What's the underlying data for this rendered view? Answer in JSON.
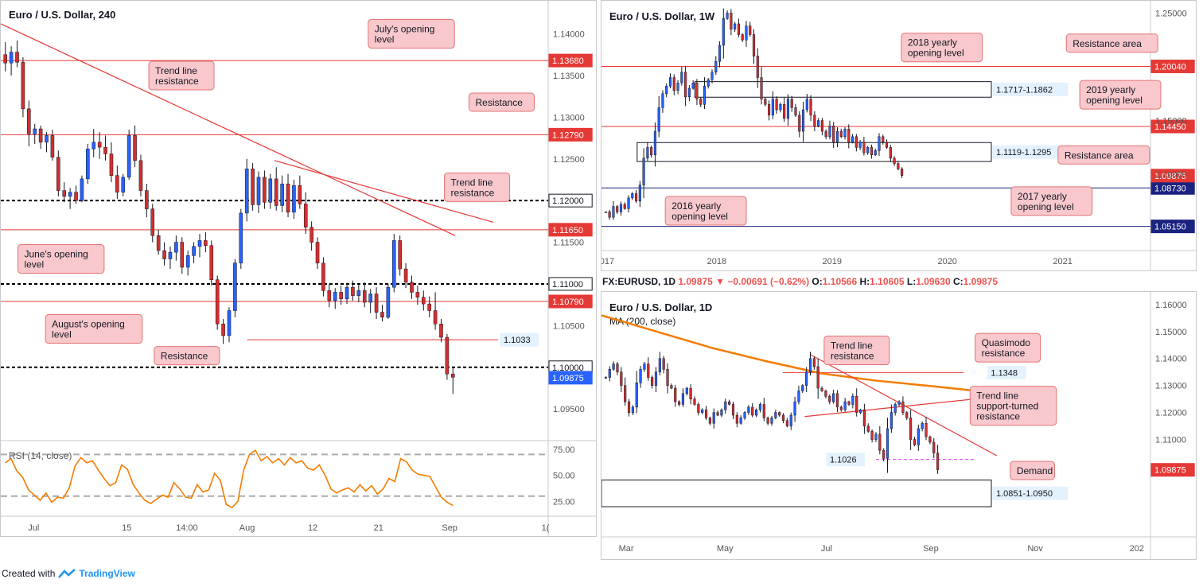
{
  "footer": {
    "created_with": "Created with",
    "brand": "TradingView"
  },
  "chart_data": [
    {
      "id": "h4",
      "type": "candlestick",
      "title": "Euro / U.S. Dollar, 240",
      "ylim": [
        1.0912,
        1.1432
      ],
      "y_ticks": [
        "1.14000",
        "1.13500",
        "1.13000",
        "1.12500",
        "1.11500",
        "1.10500",
        "1.09500"
      ],
      "x_ticks": [
        {
          "label": "Jul",
          "pos": 0.06
        },
        {
          "label": "15",
          "pos": 0.23
        },
        {
          "label": "14:00",
          "pos": 0.34
        },
        {
          "label": "Aug",
          "pos": 0.45
        },
        {
          "label": "12",
          "pos": 0.57
        },
        {
          "label": "21",
          "pos": 0.69
        },
        {
          "label": "Sep",
          "pos": 0.82
        },
        {
          "label": "1(",
          "pos": 0.995
        }
      ],
      "last_price": 1.09875,
      "last_price_label": "1.09875",
      "levels": [
        {
          "value": 1.1368,
          "label": "1.13680",
          "style": "solid",
          "color": "#e53935"
        },
        {
          "value": 1.1279,
          "label": "1.12790",
          "style": "solid",
          "color": "#e53935"
        },
        {
          "value": 1.12,
          "label": "1.12000",
          "style": "dashed",
          "color": "#000000"
        },
        {
          "value": 1.1165,
          "label": "1.11650",
          "style": "solid",
          "color": "#e53935"
        },
        {
          "value": 1.11,
          "label": "1.11000",
          "style": "dashed",
          "color": "#000000"
        },
        {
          "value": 1.1079,
          "label": "1.10790",
          "style": "solid",
          "color": "#e53935"
        },
        {
          "value": 1.1,
          "label": "1.10000",
          "style": "dashed",
          "color": "#000000"
        }
      ],
      "resistance_line": {
        "value": 1.1033,
        "label": "1.1033",
        "start": 0.45
      },
      "trendlines": [
        {
          "x1": 0.0,
          "y1": 1.1412,
          "x2": 0.83,
          "y2": 1.1158
        },
        {
          "x1": 0.5,
          "y1": 1.1248,
          "x2": 0.9,
          "y2": 1.1174
        }
      ],
      "annotations": [
        {
          "text": "July's opening level",
          "x": 0.75,
          "y": 1.14
        },
        {
          "text": "Trend line resistance",
          "x": 0.33,
          "y": 1.135
        },
        {
          "text": "Resistance",
          "x": 0.915,
          "y": 1.1318
        },
        {
          "text": "Trend line resistance",
          "x": 0.87,
          "y": 1.1216
        },
        {
          "text": "June's opening level",
          "x": 0.11,
          "y": 1.113
        },
        {
          "text": "August's opening level",
          "x": 0.17,
          "y": 1.1046
        },
        {
          "text": "Resistance",
          "x": 0.34,
          "y": 1.1014
        }
      ],
      "rsi": {
        "label": "RSI (14, close)",
        "levels": [
          70,
          30
        ],
        "y_ticks": [
          "75.00",
          "50.00",
          "25.00"
        ],
        "ylim": [
          13,
          81
        ],
        "values": [
          62,
          66,
          54,
          48,
          36,
          31,
          26,
          33,
          24,
          29,
          28,
          38,
          59,
          67,
          62,
          64,
          55,
          47,
          40,
          43,
          60,
          56,
          41,
          33,
          26,
          23,
          27,
          31,
          29,
          43,
          37,
          29,
          28,
          41,
          34,
          36,
          52,
          45,
          22,
          19,
          25,
          55,
          70,
          74,
          64,
          68,
          62,
          66,
          60,
          67,
          62,
          64,
          57,
          55,
          60,
          50,
          37,
          33,
          36,
          38,
          34,
          41,
          35,
          40,
          32,
          37,
          47,
          44,
          66,
          63,
          55,
          51,
          50,
          49,
          39,
          29,
          24,
          21
        ]
      },
      "candles": [
        [
          1.1375,
          1.139,
          1.1355,
          1.1365
        ],
        [
          1.1365,
          1.1385,
          1.135,
          1.1378
        ],
        [
          1.1378,
          1.1392,
          1.136,
          1.1366
        ],
        [
          1.1366,
          1.1372,
          1.13,
          1.131
        ],
        [
          1.131,
          1.132,
          1.1265,
          1.128
        ],
        [
          1.128,
          1.1292,
          1.1268,
          1.1286
        ],
        [
          1.1286,
          1.129,
          1.1262,
          1.127
        ],
        [
          1.127,
          1.1282,
          1.1258,
          1.1278
        ],
        [
          1.1278,
          1.1285,
          1.1248,
          1.1252
        ],
        [
          1.1252,
          1.126,
          1.1205,
          1.1212
        ],
        [
          1.1212,
          1.1222,
          1.1198,
          1.1205
        ],
        [
          1.1205,
          1.1215,
          1.119,
          1.121
        ],
        [
          1.121,
          1.1218,
          1.1196,
          1.12
        ],
        [
          1.12,
          1.123,
          1.1198,
          1.1226
        ],
        [
          1.1226,
          1.1268,
          1.122,
          1.1262
        ],
        [
          1.1262,
          1.1286,
          1.1252,
          1.127
        ],
        [
          1.127,
          1.1282,
          1.125,
          1.1264
        ],
        [
          1.1264,
          1.1278,
          1.1248,
          1.1256
        ],
        [
          1.1256,
          1.127,
          1.1222,
          1.123
        ],
        [
          1.123,
          1.1242,
          1.1202,
          1.121
        ],
        [
          1.121,
          1.1232,
          1.1205,
          1.1228
        ],
        [
          1.1228,
          1.1285,
          1.1225,
          1.1278
        ],
        [
          1.1278,
          1.129,
          1.124,
          1.1248
        ],
        [
          1.1248,
          1.1255,
          1.1205,
          1.1212
        ],
        [
          1.1212,
          1.122,
          1.118,
          1.119
        ],
        [
          1.119,
          1.1196,
          1.115,
          1.1158
        ],
        [
          1.1158,
          1.1165,
          1.1135,
          1.114
        ],
        [
          1.114,
          1.115,
          1.1122,
          1.113
        ],
        [
          1.113,
          1.1145,
          1.1118,
          1.1138
        ],
        [
          1.1138,
          1.1158,
          1.1128,
          1.115
        ],
        [
          1.115,
          1.1156,
          1.1112,
          1.112
        ],
        [
          1.112,
          1.114,
          1.111,
          1.1134
        ],
        [
          1.1134,
          1.115,
          1.1125,
          1.1145
        ],
        [
          1.1145,
          1.116,
          1.1132,
          1.1152
        ],
        [
          1.1152,
          1.1162,
          1.1138,
          1.1146
        ],
        [
          1.1146,
          1.1152,
          1.1098,
          1.1105
        ],
        [
          1.1105,
          1.111,
          1.1045,
          1.1052
        ],
        [
          1.1052,
          1.1058,
          1.1028,
          1.1038
        ],
        [
          1.1038,
          1.1072,
          1.103,
          1.1068
        ],
        [
          1.1068,
          1.113,
          1.106,
          1.1125
        ],
        [
          1.1125,
          1.119,
          1.1118,
          1.1185
        ],
        [
          1.1185,
          1.125,
          1.1175,
          1.1238
        ],
        [
          1.1238,
          1.1245,
          1.1188,
          1.1195
        ],
        [
          1.1195,
          1.1235,
          1.1185,
          1.1228
        ],
        [
          1.1228,
          1.1236,
          1.119,
          1.1198
        ],
        [
          1.1198,
          1.1232,
          1.119,
          1.1226
        ],
        [
          1.1226,
          1.124,
          1.1188,
          1.1194
        ],
        [
          1.1194,
          1.123,
          1.1186,
          1.122
        ],
        [
          1.122,
          1.1232,
          1.118,
          1.1186
        ],
        [
          1.1186,
          1.1225,
          1.1178,
          1.1218
        ],
        [
          1.1218,
          1.123,
          1.119,
          1.1196
        ],
        [
          1.1196,
          1.121,
          1.116,
          1.1168
        ],
        [
          1.1168,
          1.1175,
          1.114,
          1.115
        ],
        [
          1.115,
          1.1156,
          1.1118,
          1.1125
        ],
        [
          1.1125,
          1.1132,
          1.1085,
          1.1092
        ],
        [
          1.1092,
          1.11,
          1.1072,
          1.108
        ],
        [
          1.108,
          1.1095,
          1.107,
          1.109
        ],
        [
          1.109,
          1.1098,
          1.1075,
          1.1082
        ],
        [
          1.1082,
          1.11,
          1.1076,
          1.1096
        ],
        [
          1.1096,
          1.1104,
          1.108,
          1.1086
        ],
        [
          1.1086,
          1.11,
          1.1078,
          1.1092
        ],
        [
          1.1092,
          1.1102,
          1.1072,
          1.1078
        ],
        [
          1.1078,
          1.1094,
          1.1065,
          1.1088
        ],
        [
          1.1088,
          1.1096,
          1.1058,
          1.1066
        ],
        [
          1.1066,
          1.1075,
          1.1055,
          1.106
        ],
        [
          1.106,
          1.11,
          1.1058,
          1.1096
        ],
        [
          1.1096,
          1.116,
          1.109,
          1.1152
        ],
        [
          1.1152,
          1.1158,
          1.111,
          1.1118
        ],
        [
          1.1118,
          1.1125,
          1.1095,
          1.1102
        ],
        [
          1.1102,
          1.111,
          1.1082,
          1.109
        ],
        [
          1.109,
          1.1098,
          1.1075,
          1.1084
        ],
        [
          1.1084,
          1.1092,
          1.1068,
          1.1076
        ],
        [
          1.1076,
          1.1085,
          1.106,
          1.1068
        ],
        [
          1.1068,
          1.109,
          1.1045,
          1.1052
        ],
        [
          1.1052,
          1.1058,
          1.103,
          1.1036
        ],
        [
          1.1036,
          1.104,
          1.0985,
          1.0992
        ],
        [
          1.0992,
          1.1,
          1.0968,
          1.0988
        ]
      ]
    },
    {
      "id": "w1",
      "type": "candlestick",
      "title": "Euro / U.S. Dollar, 1W",
      "ylim": [
        1.0305,
        1.257
      ],
      "y_ticks": [
        "1.25000",
        "1.15000",
        "1.10000"
      ],
      "x_ticks": [
        {
          "label": "017",
          "pos": 0.01
        },
        {
          "label": "2018",
          "pos": 0.21
        },
        {
          "label": "2019",
          "pos": 0.42
        },
        {
          "label": "2020",
          "pos": 0.63
        },
        {
          "label": "2021",
          "pos": 0.84
        }
      ],
      "last_price": 1.09875,
      "last_price_label": "1.09875",
      "levels": [
        {
          "value": 1.2004,
          "label": "1.20040",
          "style": "solid",
          "color": "#e53935"
        },
        {
          "value": 1.1445,
          "label": "1.14450",
          "style": "solid",
          "color": "#e53935"
        },
        {
          "value": 1.0873,
          "label": "1.08730",
          "style": "solid",
          "color": "#1a237e"
        },
        {
          "value": 1.0515,
          "label": "1.05150",
          "style": "solid",
          "color": "#1a237e"
        }
      ],
      "zones": [
        {
          "top": 1.1862,
          "bottom": 1.1717,
          "start": 0.17,
          "label": "1.1717-1.1862"
        },
        {
          "top": 1.1295,
          "bottom": 1.1119,
          "start": 0.065,
          "label": "1.1119-1.1295"
        }
      ],
      "annotations": [
        {
          "text": "2018 yearly opening level",
          "x": 0.62,
          "y": 1.218
        },
        {
          "text": "Resistance area",
          "x": 0.93,
          "y": 1.222
        },
        {
          "text": "2019 yearly opening level",
          "x": 0.945,
          "y": 1.174
        },
        {
          "text": "Resistance area",
          "x": 0.915,
          "y": 1.118
        },
        {
          "text": "2017 yearly opening level",
          "x": 0.82,
          "y": 1.075
        },
        {
          "text": "2016 yearly opening level",
          "x": 0.19,
          "y": 1.066
        }
      ],
      "close_series": [
        1.065,
        1.06,
        1.07,
        1.065,
        1.072,
        1.068,
        1.078,
        1.082,
        1.075,
        1.09,
        1.115,
        1.125,
        1.118,
        1.14,
        1.162,
        1.175,
        1.182,
        1.19,
        1.178,
        1.185,
        1.195,
        1.172,
        1.18,
        1.185,
        1.17,
        1.165,
        1.182,
        1.188,
        1.195,
        1.205,
        1.22,
        1.245,
        1.25,
        1.235,
        1.24,
        1.23,
        1.225,
        1.238,
        1.23,
        1.21,
        1.19,
        1.17,
        1.165,
        1.155,
        1.17,
        1.16,
        1.165,
        1.152,
        1.17,
        1.162,
        1.155,
        1.14,
        1.16,
        1.17,
        1.155,
        1.145,
        1.15,
        1.14,
        1.135,
        1.145,
        1.13,
        1.14,
        1.135,
        1.142,
        1.13,
        1.135,
        1.125,
        1.13,
        1.12,
        1.125,
        1.118,
        1.122,
        1.135,
        1.13,
        1.125,
        1.115,
        1.11,
        1.105,
        1.0988
      ]
    },
    {
      "id": "d1",
      "type": "candlestick",
      "title": "Euro / U.S. Dollar, 1D",
      "symbol_line": {
        "symbol": "FX:EURUSD, 1D",
        "close": "1.09875",
        "change": "−0.00691 (−0.62%)",
        "open": "1.10566",
        "high": "1.10605",
        "low": "1.09630"
      },
      "ma_label": "MA (200, close)",
      "ylim": [
        1.0745,
        1.1635
      ],
      "y_ticks": [
        "1.16000",
        "1.15000",
        "1.14000",
        "1.13000",
        "1.12000",
        "1.11000"
      ],
      "x_ticks": [
        {
          "label": "Mar",
          "pos": 0.045
        },
        {
          "label": "May",
          "pos": 0.225
        },
        {
          "label": "Jul",
          "pos": 0.41
        },
        {
          "label": "Sep",
          "pos": 0.6
        },
        {
          "label": "Nov",
          "pos": 0.79
        },
        {
          "label": "202",
          "pos": 0.975
        }
      ],
      "last_price": 1.09875,
      "last_price_label": "1.09875",
      "quasimodo": {
        "value": 1.1348,
        "label": "1.1348",
        "start": 0.33,
        "end": 0.66
      },
      "support_dash": {
        "value": 1.1026,
        "label": "1.1026",
        "start": 0.5,
        "end": 0.68
      },
      "zone": {
        "top": 1.095,
        "bottom": 1.0851,
        "start": 0.0,
        "label": "1.0851-1.0950"
      },
      "trendlines": [
        {
          "x1": 0.38,
          "y1": 1.1415,
          "x2": 0.72,
          "y2": 1.104
        },
        {
          "x1": 0.37,
          "y1": 1.1185,
          "x2": 0.68,
          "y2": 1.125
        }
      ],
      "ma200": [
        [
          0.0,
          1.156
        ],
        [
          0.1,
          1.15
        ],
        [
          0.2,
          1.144
        ],
        [
          0.3,
          1.139
        ],
        [
          0.4,
          1.1345
        ],
        [
          0.5,
          1.1318
        ],
        [
          0.6,
          1.1298
        ],
        [
          0.72,
          1.1272
        ]
      ],
      "annotations": [
        {
          "text": "Trend line resistance",
          "x": 0.465,
          "y": 1.143
        },
        {
          "text": "Quasimodo resistance",
          "x": 0.74,
          "y": 1.144
        },
        {
          "text": "Trend line support-turned resistance",
          "x": 0.75,
          "y": 1.1225
        },
        {
          "text": "Demand",
          "x": 0.785,
          "y": 1.0985
        }
      ],
      "close_series": [
        1.133,
        1.136,
        1.138,
        1.135,
        1.13,
        1.124,
        1.12,
        1.122,
        1.131,
        1.136,
        1.138,
        1.133,
        1.13,
        1.135,
        1.14,
        1.136,
        1.13,
        1.129,
        1.124,
        1.123,
        1.127,
        1.129,
        1.125,
        1.123,
        1.12,
        1.121,
        1.118,
        1.116,
        1.12,
        1.119,
        1.121,
        1.124,
        1.123,
        1.119,
        1.116,
        1.118,
        1.12,
        1.122,
        1.119,
        1.121,
        1.123,
        1.118,
        1.116,
        1.118,
        1.12,
        1.119,
        1.117,
        1.115,
        1.119,
        1.124,
        1.128,
        1.13,
        1.135,
        1.14,
        1.137,
        1.129,
        1.128,
        1.126,
        1.124,
        1.127,
        1.122,
        1.121,
        1.124,
        1.123,
        1.126,
        1.12,
        1.121,
        1.115,
        1.113,
        1.11,
        1.112,
        1.106,
        1.103,
        1.114,
        1.12,
        1.123,
        1.124,
        1.12,
        1.118,
        1.11,
        1.108,
        1.114,
        1.116,
        1.111,
        1.109,
        1.105,
        1.0988
      ]
    }
  ]
}
